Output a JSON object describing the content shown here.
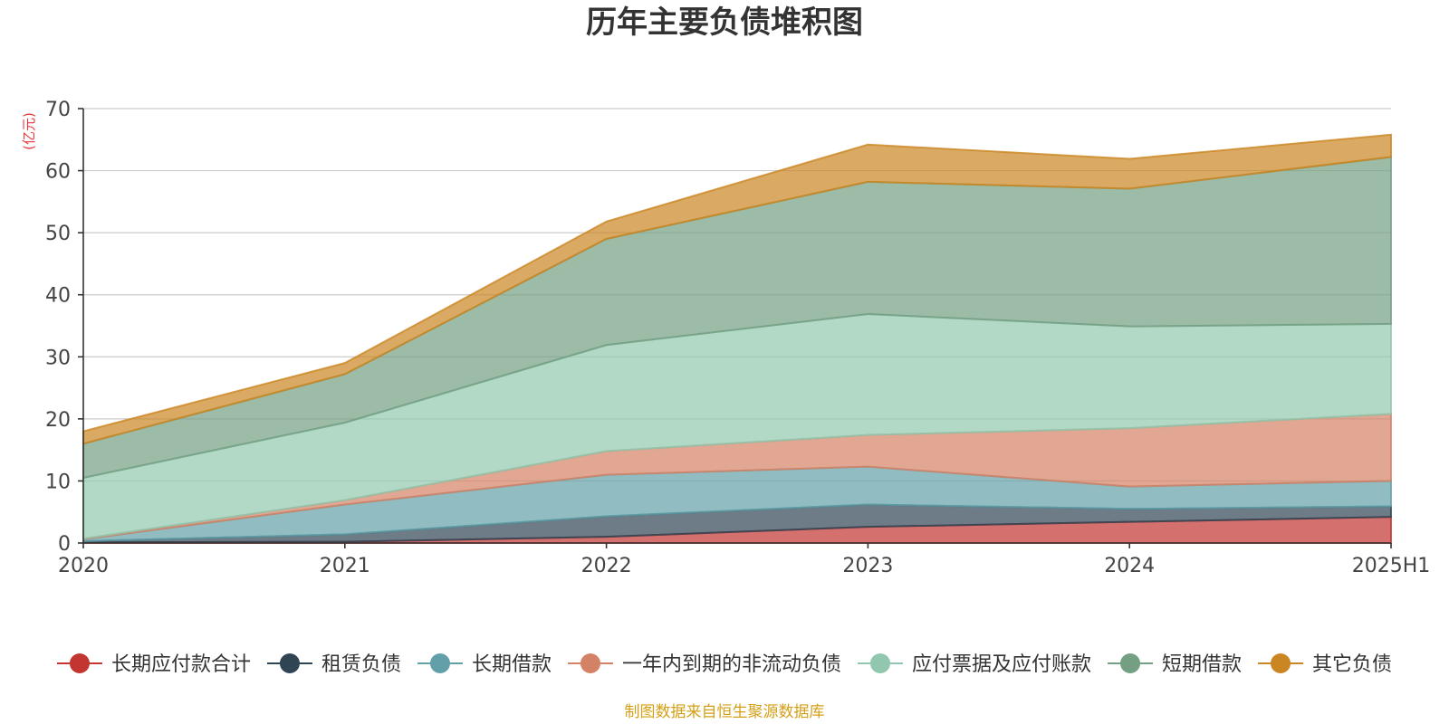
{
  "chart_data": {
    "type": "area",
    "stacked": true,
    "title": "历年主要负债堆积图",
    "unit_label": "(亿元)",
    "categories": [
      "2020",
      "2021",
      "2022",
      "2023",
      "2024",
      "2025H1"
    ],
    "ylim": [
      0,
      70
    ],
    "y_ticks": [
      "0",
      "10",
      "20",
      "30",
      "40",
      "50",
      "60",
      "70"
    ],
    "grid": true,
    "legend_position": "bottom",
    "series": [
      {
        "name": "长期应付款合计",
        "color": "#c23531",
        "values": [
          0.1,
          0.2,
          1.0,
          2.6,
          3.4,
          4.2
        ]
      },
      {
        "name": "租赁负债",
        "color": "#2f4554",
        "values": [
          0.2,
          1.2,
          3.3,
          3.6,
          2.1,
          1.7
        ]
      },
      {
        "name": "长期借款",
        "color": "#61a0a8",
        "values": [
          0.3,
          4.8,
          6.7,
          6.1,
          3.6,
          4.1
        ]
      },
      {
        "name": "一年内到期的非流动负债",
        "color": "#d48265",
        "values": [
          0.1,
          0.7,
          3.8,
          5.1,
          9.4,
          10.8
        ]
      },
      {
        "name": "应付票据及应付账款",
        "color": "#91c7ae",
        "values": [
          9.8,
          12.5,
          17.1,
          19.5,
          16.4,
          14.5
        ]
      },
      {
        "name": "短期借款",
        "color": "#749f83",
        "values": [
          5.5,
          7.8,
          17.1,
          21.3,
          22.2,
          26.9
        ]
      },
      {
        "name": "其它负债",
        "color": "#ca8622",
        "values": [
          2.0,
          1.8,
          2.8,
          6.0,
          4.8,
          3.6
        ]
      }
    ],
    "source": "制图数据来自恒生聚源数据库"
  }
}
